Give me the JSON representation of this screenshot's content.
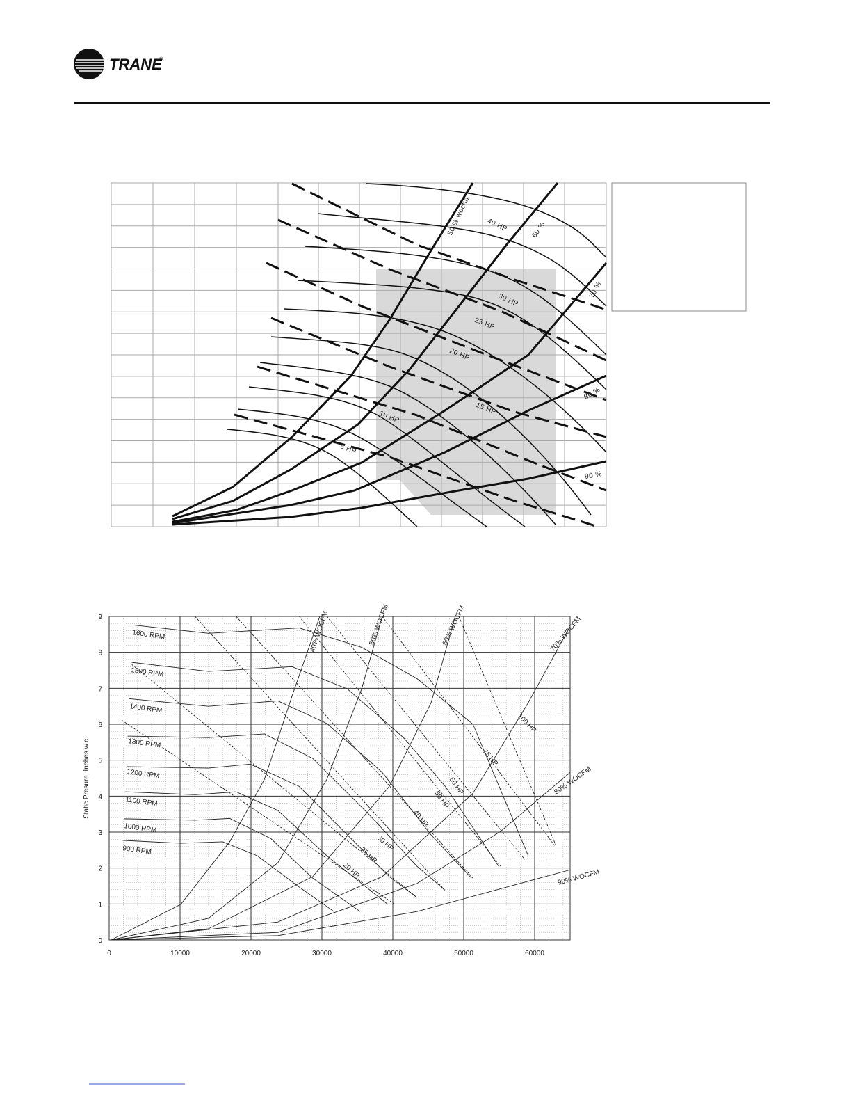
{
  "header": {
    "logo": "TRANE",
    "mark": "®"
  },
  "figure1": {
    "labels": [
      "50 % wocfm",
      "40 HP",
      "60 %",
      "70 %",
      "30 HP",
      "25 HP",
      "20 HP",
      "80 %",
      "15 HP",
      "10 HP",
      "6 HP",
      "90 %"
    ]
  },
  "chart_data": {
    "type": "line",
    "y_label": "Static Presure, Inches w.c.",
    "xlim": [
      0,
      65000
    ],
    "ylim": [
      0,
      9
    ],
    "xticks": [
      0,
      10000,
      20000,
      30000,
      40000,
      50000,
      60000
    ],
    "yticks": [
      0,
      1,
      2,
      3,
      4,
      5,
      6,
      7,
      8,
      9
    ],
    "grid": true,
    "minor_grid": true,
    "series": [
      {
        "name": "1600 RPM",
        "style": "rpm",
        "color": "#222",
        "x": [
          3400,
          14000,
          26800,
          35600,
          43400,
          51300,
          59100
        ],
        "values": [
          8.76,
          8.53,
          8.68,
          8.14,
          7.27,
          6.0,
          2.34
        ]
      },
      {
        "name": "1500 RPM",
        "style": "rpm",
        "color": "#222",
        "x": [
          3200,
          14000,
          25800,
          33600,
          41500,
          47400,
          55000
        ],
        "values": [
          7.72,
          7.47,
          7.6,
          6.98,
          5.63,
          4.27,
          2.03
        ]
      },
      {
        "name": "1400 RPM",
        "style": "rpm",
        "color": "#222",
        "x": [
          2800,
          14000,
          23800,
          30700,
          38500,
          45400,
          51100
        ],
        "values": [
          6.71,
          6.5,
          6.65,
          6.02,
          4.66,
          2.92,
          1.72
        ]
      },
      {
        "name": "1300 RPM",
        "style": "rpm",
        "color": "#222",
        "x": [
          2600,
          14000,
          21900,
          28700,
          36600,
          43400,
          47200
        ],
        "values": [
          5.67,
          5.63,
          5.73,
          5.05,
          3.5,
          2.05,
          1.41
        ]
      },
      {
        "name": "1200 RPM",
        "style": "rpm",
        "color": "#222",
        "x": [
          2500,
          14000,
          19900,
          26800,
          33600,
          39500,
          43400
        ],
        "values": [
          4.82,
          4.78,
          4.89,
          4.27,
          2.92,
          1.76,
          1.18
        ]
      },
      {
        "name": "1100 RPM",
        "style": "rpm",
        "color": "#222",
        "x": [
          2300,
          12100,
          17900,
          23800,
          30700,
          39300
        ],
        "values": [
          4.12,
          4.04,
          4.12,
          3.6,
          2.34,
          0.99
        ]
      },
      {
        "name": "1000 RPM",
        "style": "rpm",
        "color": "#222",
        "x": [
          2100,
          12100,
          17000,
          22800,
          28700,
          35400
        ],
        "values": [
          3.37,
          3.33,
          3.38,
          2.82,
          1.72,
          0.79
        ]
      },
      {
        "name": "900 RPM",
        "style": "rpm",
        "color": "#222",
        "x": [
          1900,
          10100,
          16000,
          20900,
          26800,
          31700
        ],
        "values": [
          2.77,
          2.69,
          2.73,
          2.34,
          1.47,
          0.79
        ]
      },
      {
        "name": "40% WOCFM",
        "style": "wocfm",
        "color": "#222",
        "x": [
          300,
          10100,
          17000,
          21900,
          25800,
          29700
        ],
        "values": [
          0,
          0.99,
          2.73,
          4.47,
          6.79,
          9.0
        ]
      },
      {
        "name": "50% WOCFM",
        "style": "wocfm",
        "color": "#222",
        "x": [
          300,
          14000,
          23800,
          30700,
          35600,
          38500
        ],
        "values": [
          0,
          0.6,
          2.15,
          4.47,
          6.98,
          9.0
        ]
      },
      {
        "name": "60% WOCFM",
        "style": "wocfm",
        "color": "#222",
        "x": [
          300,
          14000,
          28700,
          39500,
          45400,
          48800
        ],
        "values": [
          0,
          0.31,
          1.76,
          4.27,
          6.6,
          9.0
        ]
      },
      {
        "name": "70% WOCFM",
        "style": "wocfm",
        "color": "#222",
        "x": [
          300,
          23800,
          38500,
          51300,
          59100,
          65000
        ],
        "values": [
          0,
          0.5,
          1.76,
          4.08,
          6.6,
          8.72
        ]
      },
      {
        "name": "80% WOCFM",
        "style": "wocfm",
        "color": "#222",
        "x": [
          300,
          23800,
          43400,
          55200,
          65000
        ],
        "values": [
          0,
          0.21,
          1.57,
          3.02,
          4.66
        ]
      },
      {
        "name": "90% WOCFM",
        "style": "wocfm",
        "color": "#222",
        "x": [
          300,
          23800,
          43400,
          65000
        ],
        "values": [
          0,
          0.12,
          0.79,
          1.95
        ]
      },
      {
        "name": "20 HP",
        "style": "hp",
        "color": "#222",
        "x": [
          1800,
          40300
        ],
        "values": [
          6.11,
          0.99
        ]
      },
      {
        "name": "25 HP",
        "style": "hp",
        "color": "#222",
        "x": [
          3200,
          43400
        ],
        "values": [
          7.66,
          1.18
        ]
      },
      {
        "name": "30 HP",
        "style": "hp",
        "color": "#222",
        "x": [
          12100,
          47400
        ],
        "values": [
          9.0,
          1.37
        ]
      },
      {
        "name": "40 HP",
        "style": "hp",
        "color": "#222",
        "x": [
          17900,
          51300
        ],
        "values": [
          9.0,
          1.72
        ]
      },
      {
        "name": "50 HP",
        "style": "hp",
        "color": "#222",
        "x": [
          26800,
          55200
        ],
        "values": [
          9.0,
          2.05
        ]
      },
      {
        "name": "60 HP",
        "style": "hp",
        "color": "#222",
        "x": [
          30700,
          58600
        ],
        "values": [
          9.0,
          2.24
        ]
      },
      {
        "name": "75 HP",
        "style": "hp",
        "color": "#222",
        "x": [
          38500,
          62800
        ],
        "values": [
          9.0,
          2.63
        ]
      },
      {
        "name": "100 HP",
        "style": "hp",
        "color": "#222",
        "x": [
          49300,
          63000
        ],
        "values": [
          9.0,
          2.63
        ]
      }
    ]
  }
}
